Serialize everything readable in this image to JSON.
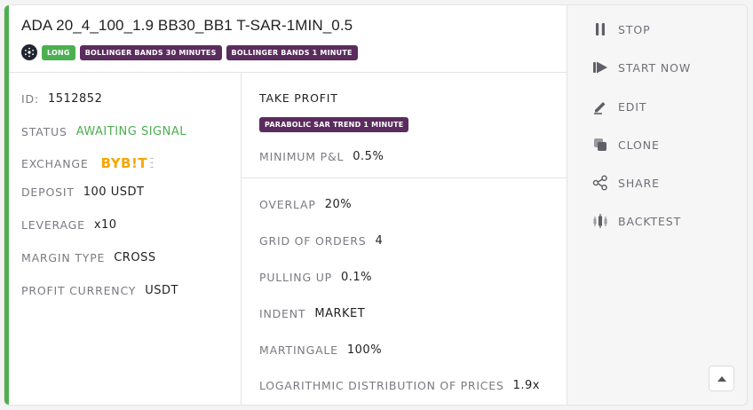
{
  "bot": {
    "title": "ADA 20_4_100_1.9 BB30_BB1 T-SAR-1MIN_0.5",
    "coin_icon": "cardano-icon",
    "tags": {
      "direction": "LONG",
      "entry1": "BOLLINGER BANDS 30 MINUTES",
      "entry2": "BOLLINGER BANDS 1 MINUTE"
    }
  },
  "details": {
    "id_label": "ID:",
    "id_value": "1512852",
    "status_label": "STATUS",
    "status_value": "AWAITING SIGNAL",
    "exchange_label": "EXCHANGE",
    "exchange_logo": "BYB!T",
    "deposit_label": "DEPOSIT",
    "deposit_value": "100 USDT",
    "leverage_label": "LEVERAGE",
    "leverage_value": "x10",
    "margin_label": "MARGIN TYPE",
    "margin_value": "CROSS",
    "currency_label": "PROFIT CURRENCY",
    "currency_value": "USDT"
  },
  "take_profit": {
    "title": "TAKE PROFIT",
    "tag": "PARABOLIC SAR TREND 1 MINUTE",
    "min_pnl_label": "MINIMUM P&L",
    "min_pnl_value": "0.5%"
  },
  "grid": {
    "overlap_label": "OVERLAP",
    "overlap_value": "20%",
    "orders_label": "GRID OF ORDERS",
    "orders_value": "4",
    "pulling_label": "PULLING UP",
    "pulling_value": "0.1%",
    "indent_label": "INDENT",
    "indent_value": "MARKET",
    "martingale_label": "MARTINGALE",
    "martingale_value": "100%",
    "log_label": "LOGARITHMIC DISTRIBUTION OF PRICES",
    "log_value": "1.9x"
  },
  "actions": {
    "stop": "STOP",
    "start": "START NOW",
    "edit": "EDIT",
    "clone": "CLONE",
    "share": "SHARE",
    "backtest": "BACKTEST"
  },
  "colors": {
    "accent_green": "#4caf50",
    "tag_purple": "#5b2c5e",
    "bybit_orange": "#f7a600"
  }
}
